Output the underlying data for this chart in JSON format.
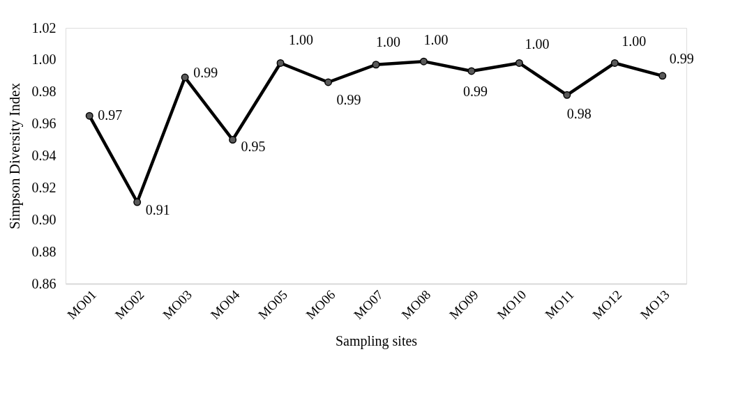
{
  "chart_data": {
    "type": "line",
    "xlabel": "Sampling sites",
    "ylabel": "Simpson Diversity  Index",
    "categories": [
      "MO01",
      "MO02",
      "MO03",
      "MO04",
      "MO05",
      "MO06",
      "MO07",
      "MO08",
      "MO09",
      "MO10",
      "MO11",
      "MO12",
      "MO13"
    ],
    "series": [
      {
        "color": "#000000",
        "values": [
          0.965,
          0.911,
          0.989,
          0.95,
          0.998,
          0.986,
          0.997,
          0.999,
          0.993,
          0.998,
          0.978,
          0.998,
          0.99
        ],
        "value_labels": [
          "0.97",
          "0.91",
          "0.99",
          "0.95",
          "1.00",
          "0.99",
          "1.00",
          "1.00",
          "0.99",
          "1.00",
          "0.98",
          "1.00",
          "0.99"
        ]
      }
    ],
    "ylim": [
      0.86,
      1.02
    ],
    "yticks": [
      0.86,
      0.88,
      {
        "value": 0.9,
        "label": "0.90"
      },
      0.92,
      0.94,
      0.96,
      0.98,
      {
        "value": 1,
        "label": "1.00"
      },
      1.02
    ],
    "marker": "circle",
    "line_style": "solid",
    "grid": false
  }
}
